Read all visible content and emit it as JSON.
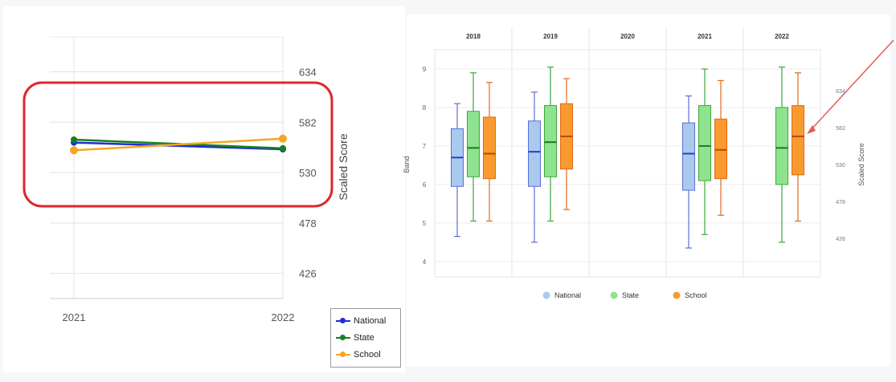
{
  "chart_data": [
    {
      "type": "line",
      "x": [
        "2021",
        "2022"
      ],
      "ylabel": "Scaled Score",
      "y_ticks": [
        "426",
        "478",
        "530",
        "582",
        "634"
      ],
      "ylim": [
        400,
        670
      ],
      "series": [
        {
          "name": "National",
          "values": [
            561,
            554
          ],
          "color": "#1f2fd6"
        },
        {
          "name": "State",
          "values": [
            564,
            555
          ],
          "color": "#17801f"
        },
        {
          "name": "School",
          "values": [
            553,
            565
          ],
          "color": "#f5a623"
        }
      ],
      "legend": {
        "placement": "bottom-right",
        "entries": [
          "National",
          "State",
          "School"
        ]
      },
      "grid": true,
      "highlight": "red rounded rectangle"
    },
    {
      "type": "box",
      "categories": [
        "2018",
        "2019",
        "2020",
        "2021",
        "2022"
      ],
      "ylabel": "Band",
      "y2label": "Scaled Score",
      "y_ticks": [
        "4",
        "5",
        "6",
        "7",
        "8",
        "9"
      ],
      "y2_ticks": [
        "426",
        "478",
        "530",
        "582",
        "634"
      ],
      "ylim": [
        3.6,
        9.5
      ],
      "series": [
        {
          "name": "National",
          "color": "#a9c9ee",
          "stroke": "#5a6fd6",
          "median_color": "#2a3fc6",
          "boxes": [
            {
              "min": 4.65,
              "q1": 5.95,
              "median": 6.7,
              "q3": 7.45,
              "max": 8.1
            },
            {
              "min": 4.5,
              "q1": 5.95,
              "median": 6.85,
              "q3": 7.65,
              "max": 8.4
            },
            null,
            {
              "min": 4.35,
              "q1": 5.85,
              "median": 6.8,
              "q3": 7.6,
              "max": 8.3
            },
            null
          ]
        },
        {
          "name": "State",
          "color": "#8fe38f",
          "stroke": "#3aa83a",
          "median_color": "#1f7a1f",
          "boxes": [
            {
              "min": 5.05,
              "q1": 6.2,
              "median": 6.95,
              "q3": 7.9,
              "max": 8.9
            },
            {
              "min": 5.05,
              "q1": 6.2,
              "median": 7.1,
              "q3": 8.05,
              "max": 9.05
            },
            null,
            {
              "min": 4.7,
              "q1": 6.1,
              "median": 7.0,
              "q3": 8.05,
              "max": 9.0
            },
            {
              "min": 4.5,
              "q1": 6.0,
              "median": 6.95,
              "q3": 8.0,
              "max": 9.05
            }
          ]
        },
        {
          "name": "School",
          "color": "#f99a2f",
          "stroke": "#e26a1a",
          "median_color": "#b24c08",
          "boxes": [
            {
              "min": 5.05,
              "q1": 6.15,
              "median": 6.8,
              "q3": 7.75,
              "max": 8.65
            },
            {
              "min": 5.35,
              "q1": 6.4,
              "median": 7.25,
              "q3": 8.1,
              "max": 8.75
            },
            null,
            {
              "min": 5.2,
              "q1": 6.15,
              "median": 6.9,
              "q3": 7.7,
              "max": 8.7
            },
            {
              "min": 5.05,
              "q1": 6.25,
              "median": 7.25,
              "q3": 8.05,
              "max": 8.9
            }
          ]
        }
      ],
      "legend": {
        "placement": "bottom-center",
        "entries": [
          "National",
          "State",
          "School"
        ]
      },
      "annotation": "red arrow pointing to 2022 School box"
    }
  ]
}
